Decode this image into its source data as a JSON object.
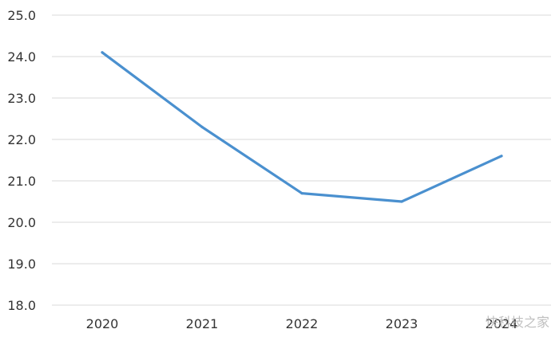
{
  "chart_data": {
    "type": "line",
    "title": "",
    "xlabel": "",
    "ylabel": "",
    "categories": [
      "2020",
      "2021",
      "2022",
      "2023",
      "2024"
    ],
    "series": [
      {
        "values": [
          24.1,
          22.3,
          20.7,
          20.5,
          21.6
        ],
        "color": "#4a90cf"
      }
    ],
    "ylim": [
      18.0,
      25.0
    ],
    "yticks": [
      "18.0",
      "19.0",
      "20.0",
      "21.0",
      "22.0",
      "23.0",
      "24.0",
      "25.0"
    ],
    "grid": true,
    "legend": "none"
  },
  "watermark": {
    "text": "快科技之家"
  },
  "colors": {
    "grid": "#d9d9d9",
    "axis_text": "#333333",
    "line": "#4a90cf"
  }
}
